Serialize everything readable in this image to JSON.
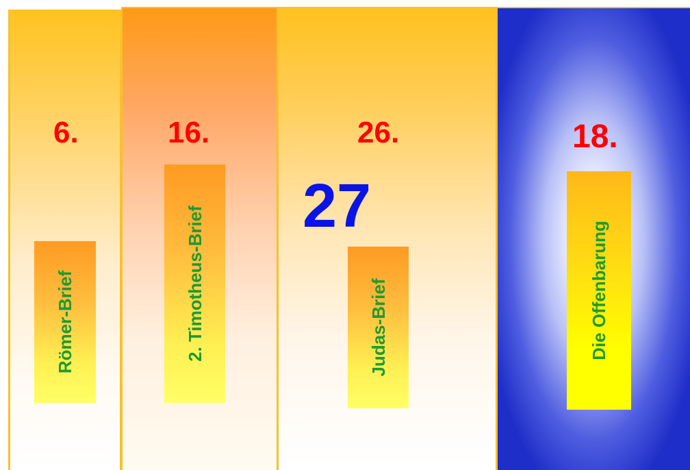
{
  "columns": [
    {
      "number": "6.",
      "book": "Römer-Brief"
    },
    {
      "number": "16.",
      "book": "2. Timotheus-Brief"
    },
    {
      "number": "26.",
      "book": "Judas-Brief",
      "total": "27"
    },
    {
      "number": "18.",
      "book": "Die Offenbarung"
    }
  ],
  "colors": {
    "number": "#ff0000",
    "total": "#0a14e6",
    "book_text": "#1f9a2f",
    "border": "#f7c12a",
    "blue_panel": "#1e2ec8"
  }
}
